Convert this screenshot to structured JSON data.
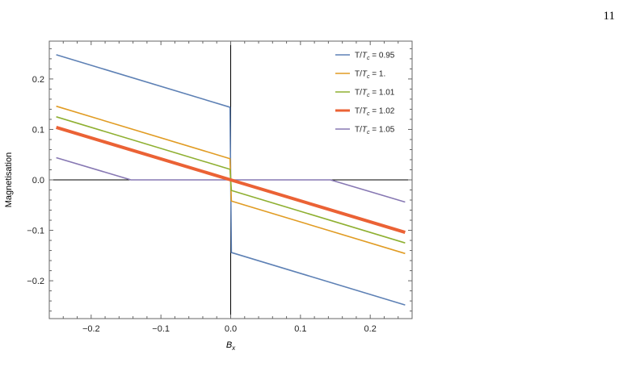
{
  "page": {
    "number": "11"
  },
  "chart_data": {
    "type": "line",
    "title": "",
    "xlabel": "B",
    "xlabel_sub": "x",
    "ylabel": "Magnetisation",
    "xlim": [
      -0.26,
      0.26
    ],
    "ylim": [
      -0.275,
      0.275
    ],
    "xticks": [
      -0.2,
      -0.1,
      0.0,
      0.1,
      0.2
    ],
    "xtick_labels": [
      "−0.2",
      "−0.1",
      "0.0",
      "0.1",
      "0.2"
    ],
    "yticks": [
      -0.2,
      -0.1,
      0.0,
      0.1,
      0.2
    ],
    "ytick_labels": [
      "−0.2",
      "−0.1",
      "0.0",
      "0.1",
      "0.2"
    ],
    "grid": false,
    "legend_position": "top-right",
    "series": [
      {
        "name_prefix": "T/",
        "name_var": "T",
        "name_sub": "c",
        "name_suffix": " = 0.95",
        "color": "#5e81b5",
        "bold": false,
        "x": [
          -0.25,
          -0.001,
          0.0,
          0.001,
          0.25
        ],
        "y": [
          0.248,
          0.144,
          0.0,
          -0.144,
          -0.248
        ]
      },
      {
        "name_prefix": "T/",
        "name_var": "T",
        "name_sub": "c",
        "name_suffix": " = 1.",
        "color": "#e19c24",
        "bold": false,
        "x": [
          -0.25,
          -0.001,
          0.0,
          0.001,
          0.25
        ],
        "y": [
          0.146,
          0.042,
          0.0,
          -0.042,
          -0.146
        ]
      },
      {
        "name_prefix": "T/",
        "name_var": "T",
        "name_sub": "c",
        "name_suffix": " = 1.01",
        "color": "#8fb032",
        "bold": false,
        "x": [
          -0.25,
          -0.001,
          0.0,
          0.001,
          0.25
        ],
        "y": [
          0.125,
          0.021,
          0.0,
          -0.021,
          -0.125
        ]
      },
      {
        "name_prefix": "T/",
        "name_var": "T",
        "name_sub": "c",
        "name_suffix": " = 1.02",
        "color": "#eb6235",
        "bold": true,
        "x": [
          -0.25,
          0.0,
          0.25
        ],
        "y": [
          0.104,
          0.0,
          -0.104
        ]
      },
      {
        "name_prefix": "T/",
        "name_var": "T",
        "name_sub": "c",
        "name_suffix": " = 1.05",
        "color": "#8778b3",
        "bold": false,
        "x": [
          -0.25,
          -0.143,
          0.143,
          0.25
        ],
        "y": [
          0.044,
          0.0,
          0.0,
          -0.044
        ]
      }
    ]
  }
}
